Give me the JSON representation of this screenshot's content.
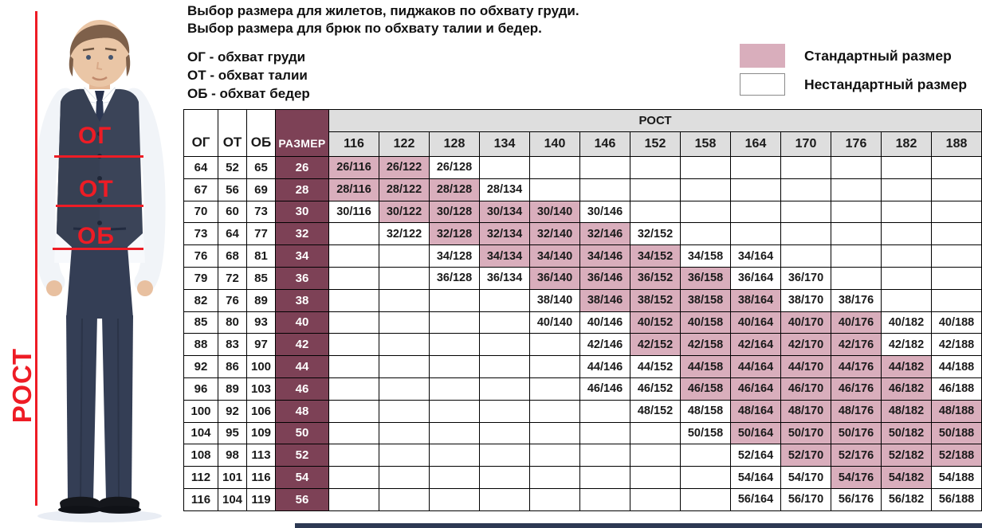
{
  "header": {
    "title_line1": "Выбор размера для жилетов, пиджаков по обхвату груди.",
    "title_line2": "Выбор размера для брюк по обхвату талии и бедер.",
    "abbr_chest": "ОГ - обхват груди",
    "abbr_waist": "ОТ - обхват талии",
    "abbr_hips": "ОБ - обхват бедер"
  },
  "legend": {
    "standard_label": "Стандартный размер",
    "nonstandard_label": "Нестандартный размер",
    "standard_color": "#d9aebc",
    "nonstandard_color": "#ffffff"
  },
  "photo": {
    "chest_label": "ОГ",
    "waist_label": "ОТ",
    "hips_label": "ОБ",
    "height_label": "РОСТ"
  },
  "colors": {
    "standard_fill": "#d9aebc",
    "size_column_fill": "#7d4156",
    "header_fill": "#dedede",
    "annotation_red": "#ee1c25"
  },
  "chart_data": {
    "type": "table",
    "columns": {
      "og": "ОГ",
      "ot": "ОТ",
      "ob": "ОБ",
      "size": "РАЗМЕР",
      "height_group": "РОСТ"
    },
    "heights": [
      "116",
      "122",
      "128",
      "134",
      "140",
      "146",
      "152",
      "158",
      "164",
      "170",
      "176",
      "182",
      "188"
    ],
    "cell_status_legend": {
      "std": "Стандартный размер",
      "non": "Нестандартный размер"
    },
    "rows": [
      {
        "og": "64",
        "ot": "52",
        "ob": "65",
        "size": "26",
        "cells": {
          "116": "std",
          "122": "std",
          "128": "non"
        }
      },
      {
        "og": "67",
        "ot": "56",
        "ob": "69",
        "size": "28",
        "cells": {
          "116": "std",
          "122": "std",
          "128": "std",
          "134": "non"
        }
      },
      {
        "og": "70",
        "ot": "60",
        "ob": "73",
        "size": "30",
        "cells": {
          "116": "non",
          "122": "std",
          "128": "std",
          "134": "std",
          "140": "std",
          "146": "non"
        }
      },
      {
        "og": "73",
        "ot": "64",
        "ob": "77",
        "size": "32",
        "cells": {
          "122": "non",
          "128": "std",
          "134": "std",
          "140": "std",
          "146": "std",
          "152": "non"
        }
      },
      {
        "og": "76",
        "ot": "68",
        "ob": "81",
        "size": "34",
        "cells": {
          "128": "non",
          "134": "std",
          "140": "std",
          "146": "std",
          "152": "std",
          "158": "non",
          "164": "non"
        }
      },
      {
        "og": "79",
        "ot": "72",
        "ob": "85",
        "size": "36",
        "cells": {
          "128": "non",
          "134": "non",
          "140": "std",
          "146": "std",
          "152": "std",
          "158": "std",
          "164": "non",
          "170": "non"
        }
      },
      {
        "og": "82",
        "ot": "76",
        "ob": "89",
        "size": "38",
        "cells": {
          "140": "non",
          "146": "std",
          "152": "std",
          "158": "std",
          "164": "std",
          "170": "non",
          "176": "non"
        }
      },
      {
        "og": "85",
        "ot": "80",
        "ob": "93",
        "size": "40",
        "cells": {
          "140": "non",
          "146": "non",
          "152": "std",
          "158": "std",
          "164": "std",
          "170": "std",
          "176": "std",
          "182": "non",
          "188": "non"
        }
      },
      {
        "og": "88",
        "ot": "83",
        "ob": "97",
        "size": "42",
        "cells": {
          "146": "non",
          "152": "std",
          "158": "std",
          "164": "std",
          "170": "std",
          "176": "std",
          "182": "non",
          "188": "non"
        }
      },
      {
        "og": "92",
        "ot": "86",
        "ob": "100",
        "size": "44",
        "cells": {
          "146": "non",
          "152": "non",
          "158": "std",
          "164": "std",
          "170": "std",
          "176": "std",
          "182": "std",
          "188": "non"
        }
      },
      {
        "og": "96",
        "ot": "89",
        "ob": "103",
        "size": "46",
        "cells": {
          "146": "non",
          "152": "non",
          "158": "std",
          "164": "std",
          "170": "std",
          "176": "std",
          "182": "std",
          "188": "non"
        }
      },
      {
        "og": "100",
        "ot": "92",
        "ob": "106",
        "size": "48",
        "cells": {
          "152": "non",
          "158": "non",
          "164": "std",
          "170": "std",
          "176": "std",
          "182": "std",
          "188": "std"
        }
      },
      {
        "og": "104",
        "ot": "95",
        "ob": "109",
        "size": "50",
        "cells": {
          "158": "non",
          "164": "std",
          "170": "std",
          "176": "std",
          "182": "std",
          "188": "std"
        }
      },
      {
        "og": "108",
        "ot": "98",
        "ob": "113",
        "size": "52",
        "cells": {
          "164": "non",
          "170": "std",
          "176": "std",
          "182": "std",
          "188": "std"
        }
      },
      {
        "og": "112",
        "ot": "101",
        "ob": "116",
        "size": "54",
        "cells": {
          "164": "non",
          "170": "non",
          "176": "std",
          "182": "std",
          "188": "non"
        }
      },
      {
        "og": "116",
        "ot": "104",
        "ob": "119",
        "size": "56",
        "cells": {
          "164": "non",
          "170": "non",
          "176": "non",
          "182": "non",
          "188": "non"
        }
      }
    ]
  }
}
